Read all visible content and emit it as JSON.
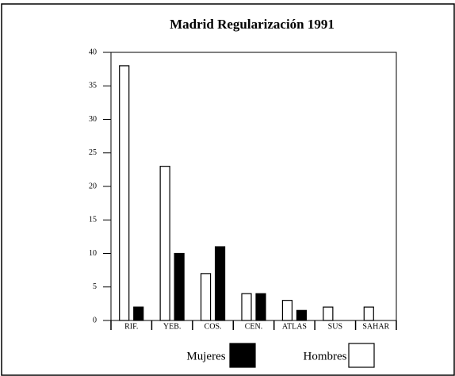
{
  "chart_data": {
    "type": "bar",
    "title": "Madrid Regularización 1991",
    "categories": [
      "RIF.",
      "YEB.",
      "COS.",
      "CEN.",
      "ATLAS",
      "SUS",
      "SAHAR"
    ],
    "series": [
      {
        "name": "Mujeres",
        "color": "#000000",
        "values": [
          2,
          10,
          11,
          4,
          1.5,
          0,
          0
        ]
      },
      {
        "name": "Hombres",
        "color": "#ffffff",
        "values": [
          38,
          23,
          7,
          4,
          3,
          2,
          2
        ]
      }
    ],
    "ylim": [
      0,
      40
    ],
    "yticks": [
      0,
      5,
      10,
      15,
      20,
      25,
      30,
      35,
      40
    ],
    "legend": "bottom"
  }
}
